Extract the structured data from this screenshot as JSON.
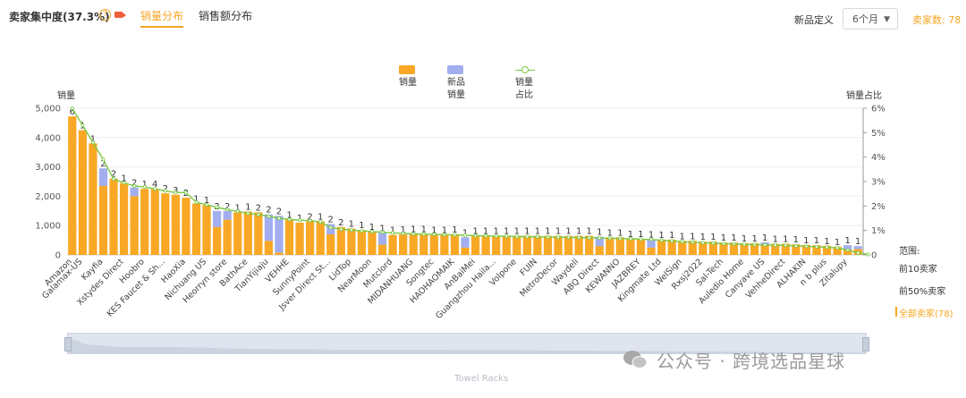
{
  "header": {
    "title": "卖家集中度(37.3%)",
    "help_glyph": "?",
    "tabs": [
      {
        "label": "销量分布"
      },
      {
        "label": "销售额分布"
      }
    ],
    "definition_label": "新品定义",
    "definition_value": "6个月",
    "seller_count": "卖家数: 78"
  },
  "legend": {
    "sales": "销量",
    "new_sales": "新品销量",
    "share": "销量占比"
  },
  "axes": {
    "left_title": "销量",
    "right_title": "销量占比"
  },
  "range_panel": {
    "title": "范围:",
    "items": [
      {
        "label": "前10卖家",
        "active": false
      },
      {
        "label": "前50%卖家",
        "active": false
      },
      {
        "label": "全部卖家(78)",
        "active": true
      }
    ]
  },
  "zoom": {
    "label": "Towel Racks"
  },
  "watermark": "公众号 · 跨境选品星球",
  "colors": {
    "sales": "#f9a825",
    "new_sales": "#a3aef0",
    "share": "#7ac943",
    "accent": "#f5a623"
  },
  "chart_data": {
    "type": "bar",
    "stacked": true,
    "ylim": [
      0,
      5000
    ],
    "yticks": [
      "0",
      "1,000",
      "2,000",
      "3,000",
      "4,000",
      "5,000"
    ],
    "y2lim": [
      0,
      6
    ],
    "y2ticks": [
      "0",
      "1%",
      "2%",
      "3%",
      "4%",
      "5%",
      "6%"
    ],
    "categories": [
      "Amazon",
      "Galamax-US",
      "",
      "Kayfia",
      "",
      "Xstydes Direct",
      "",
      "Hoobro",
      "",
      "KES Faucet & Sh...",
      "",
      "HaoXia",
      "",
      "Nichuang US",
      "",
      "Heorryn store",
      "",
      "BathAce",
      "",
      "TianYijiaju",
      "",
      "VEHHE",
      "",
      "SunnyPoint",
      "",
      "Jsver Direct St...",
      "",
      "LidTop",
      "",
      "NearMoon",
      "",
      "Mutclord",
      "",
      "MIDANHUANG",
      "",
      "Songtec",
      "",
      "HAOHAOMAIK",
      "",
      "AnBaiMei",
      "",
      "Guangzhou Haila...",
      "",
      "Volpone",
      "",
      "FUIN",
      "",
      "MetroDecor",
      "",
      "Waydeli",
      "",
      "ABQ Direct",
      "",
      "KEWANNO",
      "",
      "JAZBREY",
      "",
      "Kingmate Ltd",
      "",
      "WelSign",
      "",
      "Rxsj2022",
      "",
      "Sal-Tech",
      "",
      "Auledio Home",
      "",
      "Canyave US",
      "",
      "VehheDirect",
      "",
      "ALHAKIN",
      "",
      "n b plus",
      "",
      "Zitalupy",
      ""
    ],
    "labels": [
      "6",
      "1",
      "1",
      "2",
      "2",
      "1",
      "2",
      "1",
      "4",
      "2",
      "3",
      "2",
      "1",
      "1",
      "2",
      "2",
      "1",
      "1",
      "2",
      "2",
      "2",
      "1",
      "1",
      "2",
      "1",
      "2",
      "2",
      "1",
      "1",
      "1",
      "1",
      "1",
      "1",
      "1",
      "1",
      "1",
      "1",
      "1",
      "1",
      "1",
      "1",
      "1",
      "1",
      "1",
      "1",
      "1",
      "1",
      "1",
      "1",
      "1",
      "1",
      "1",
      "1",
      "1",
      "1",
      "1",
      "1",
      "1",
      "1",
      "1",
      "1",
      "1",
      "1",
      "1",
      "1",
      "1",
      "1",
      "1",
      "1",
      "1",
      "1",
      "1",
      "1",
      "1",
      "1",
      "1",
      "1",
      "1"
    ],
    "series": [
      {
        "name": "销量",
        "values": [
          4720,
          4250,
          3800,
          2350,
          2600,
          2450,
          2000,
          2250,
          2250,
          2100,
          2050,
          1950,
          1750,
          1700,
          950,
          1200,
          1450,
          1480,
          1450,
          480,
          80,
          1200,
          1100,
          1150,
          1150,
          700,
          950,
          900,
          850,
          800,
          350,
          680,
          700,
          720,
          720,
          680,
          680,
          700,
          250,
          650,
          650,
          650,
          650,
          650,
          650,
          650,
          650,
          650,
          650,
          650,
          650,
          300,
          600,
          600,
          550,
          550,
          250,
          520,
          520,
          480,
          480,
          450,
          450,
          420,
          420,
          400,
          400,
          350,
          380,
          380,
          360,
          340,
          330,
          310,
          280,
          180,
          200,
          150
        ]
      },
      {
        "name": "新品销量",
        "values": [
          0,
          0,
          0,
          600,
          0,
          0,
          300,
          0,
          0,
          0,
          0,
          0,
          0,
          0,
          550,
          300,
          0,
          0,
          0,
          900,
          1250,
          0,
          0,
          0,
          0,
          350,
          0,
          0,
          0,
          0,
          400,
          0,
          0,
          0,
          0,
          0,
          0,
          0,
          350,
          0,
          0,
          0,
          0,
          0,
          0,
          0,
          0,
          0,
          0,
          0,
          0,
          320,
          0,
          0,
          0,
          0,
          280,
          0,
          0,
          0,
          0,
          0,
          0,
          0,
          0,
          0,
          0,
          80,
          0,
          0,
          0,
          0,
          0,
          0,
          0,
          150,
          100,
          0
        ]
      }
    ],
    "line": {
      "name": "销量占比",
      "values": [
        6.0,
        5.3,
        4.6,
        3.9,
        3.1,
        2.95,
        2.82,
        2.78,
        2.7,
        2.62,
        2.55,
        2.55,
        2.15,
        2.05,
        1.95,
        1.85,
        1.78,
        1.7,
        1.65,
        1.58,
        1.5,
        1.45,
        1.42,
        1.4,
        1.35,
        1.12,
        1.05,
        1.02,
        0.98,
        0.95,
        0.93,
        0.9,
        0.88,
        0.86,
        0.85,
        0.84,
        0.83,
        0.82,
        0.8,
        0.79,
        0.78,
        0.77,
        0.76,
        0.75,
        0.75,
        0.74,
        0.73,
        0.72,
        0.72,
        0.71,
        0.7,
        0.69,
        0.68,
        0.67,
        0.66,
        0.64,
        0.63,
        0.6,
        0.57,
        0.54,
        0.52,
        0.5,
        0.48,
        0.46,
        0.45,
        0.43,
        0.42,
        0.41,
        0.4,
        0.39,
        0.37,
        0.35,
        0.33,
        0.31,
        0.29,
        0.2,
        0.08,
        0.02
      ]
    }
  }
}
